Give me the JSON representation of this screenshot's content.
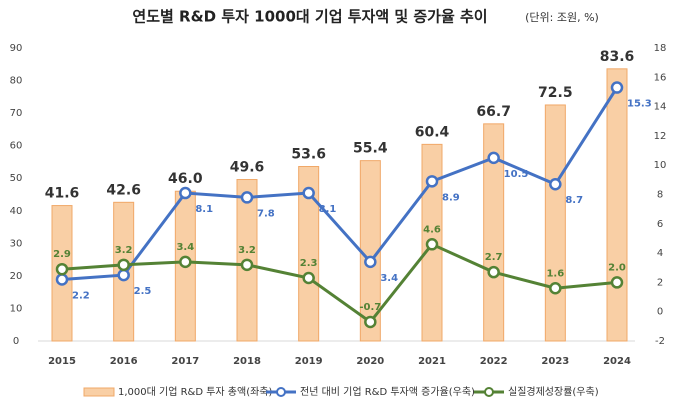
{
  "chart_data": {
    "type": "bar",
    "title": "연도별 R&D 투자 1000대 기업 투자액 및 증가율 추이",
    "subtitle": "(단위: 조원, %)",
    "categories": [
      "2015",
      "2016",
      "2017",
      "2018",
      "2019",
      "2020",
      "2021",
      "2022",
      "2023",
      "2024"
    ],
    "series": [
      {
        "name": "1,000대 기업 R&D 투자 총액(좌축)",
        "type": "bar",
        "color": "#f9cfa5",
        "axis": "y",
        "values": [
          41.6,
          42.6,
          46.0,
          49.6,
          53.6,
          55.4,
          60.4,
          66.7,
          72.5,
          83.6
        ],
        "value_labels": [
          "41.6",
          "42.6",
          "46.0",
          "49.6",
          "53.6",
          "55.4",
          "60.4",
          "66.7",
          "72.5",
          "83.6"
        ]
      },
      {
        "name": "전년 대비 기업 R&D 투자액 증가율(우축)",
        "type": "line",
        "color": "#4472c4",
        "axis": "y2",
        "values": [
          2.2,
          2.5,
          8.1,
          7.8,
          8.1,
          3.4,
          8.9,
          10.5,
          8.7,
          15.3
        ]
      },
      {
        "name": "실질경제성장률(우축)",
        "type": "line",
        "color": "#548235",
        "axis": "y2",
        "values": [
          2.9,
          3.2,
          3.4,
          3.2,
          2.3,
          -0.7,
          4.6,
          2.7,
          1.6,
          2.0
        ],
        "value_labels": [
          "2.9",
          "3.2",
          "3.4",
          "3.2",
          "2.3",
          "-0.7",
          "4.6",
          "2.7",
          "1.6",
          "2.0"
        ]
      }
    ],
    "ylim": [
      0,
      90
    ],
    "yticks": [
      0,
      10,
      20,
      30,
      40,
      50,
      60,
      70,
      80,
      90
    ],
    "y2lim": [
      -2,
      18
    ],
    "y2ticks": [
      -2,
      0,
      2,
      4,
      6,
      8,
      10,
      12,
      14,
      16,
      18
    ],
    "grid": false
  }
}
